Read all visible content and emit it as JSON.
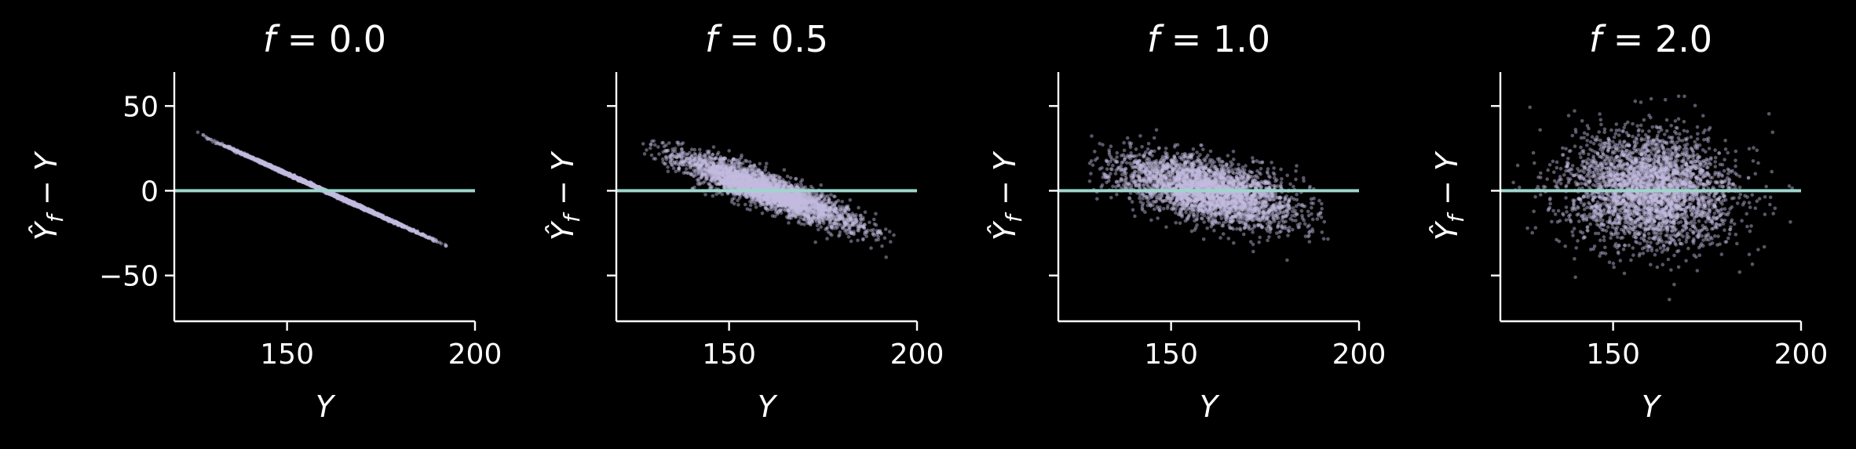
{
  "chart_data": [
    {
      "type": "scatter",
      "title_var": "f",
      "title_value": "0.0",
      "xlabel": "Y",
      "ylabel": "Ŷ_f − Y",
      "xlim": [
        120,
        200
      ],
      "ylim": [
        -77,
        70
      ],
      "xticks": [
        150,
        200
      ],
      "yticks": [
        -50,
        0,
        50
      ],
      "ytick_labels": [
        "−50",
        "0",
        "50"
      ],
      "ytick_labels_visible": true,
      "reference_line_y": 0,
      "point_color": "#c4bde0",
      "line_color": "#9ed6cc",
      "cloud": {
        "x_center": 160,
        "x_sd": 12,
        "x_range": [
          126,
          193
        ],
        "slope": -1.0,
        "intercept": 160,
        "y_noise_sd": 0.4
      }
    },
    {
      "type": "scatter",
      "title_var": "f",
      "title_value": "0.5",
      "xlabel": "Y",
      "ylabel": "Ŷ_f − Y",
      "xlim": [
        120,
        200
      ],
      "ylim": [
        -77,
        70
      ],
      "xticks": [
        150,
        200
      ],
      "yticks": [
        -50,
        0,
        50
      ],
      "ytick_labels": [
        "−50",
        "0",
        "50"
      ],
      "ytick_labels_visible": false,
      "reference_line_y": 0,
      "point_color": "#c4bde0",
      "line_color": "#9ed6cc",
      "cloud": {
        "x_center": 160,
        "x_sd": 12,
        "x_range": [
          127,
          194
        ],
        "slope": -0.8,
        "intercept": 128,
        "y_noise_sd": 5
      }
    },
    {
      "type": "scatter",
      "title_var": "f",
      "title_value": "1.0",
      "xlabel": "Y",
      "ylabel": "Ŷ_f − Y",
      "xlim": [
        120,
        200
      ],
      "ylim": [
        -77,
        70
      ],
      "xticks": [
        150,
        200
      ],
      "yticks": [
        -50,
        0,
        50
      ],
      "ytick_labels": [
        "−50",
        "0",
        "50"
      ],
      "ytick_labels_visible": false,
      "reference_line_y": 0,
      "point_color": "#c4bde0",
      "line_color": "#9ed6cc",
      "cloud": {
        "x_center": 160,
        "x_sd": 12,
        "x_range": [
          128,
          192
        ],
        "slope": -0.5,
        "intercept": 80,
        "y_noise_sd": 9
      }
    },
    {
      "type": "scatter",
      "title_var": "f",
      "title_value": "2.0",
      "xlabel": "Y",
      "ylabel": "Ŷ_f − Y",
      "xlim": [
        120,
        200
      ],
      "ylim": [
        -77,
        70
      ],
      "xticks": [
        150,
        200
      ],
      "yticks": [
        -50,
        0,
        50
      ],
      "ytick_labels": [
        "−50",
        "0",
        "50"
      ],
      "ytick_labels_visible": false,
      "reference_line_y": 0,
      "point_color": "#c4bde0",
      "line_color": "#9ed6cc",
      "cloud": {
        "x_center": 160,
        "x_sd": 11,
        "x_range": [
          122,
          198
        ],
        "slope": -0.1,
        "intercept": 16,
        "y_noise_sd": 17
      }
    }
  ]
}
